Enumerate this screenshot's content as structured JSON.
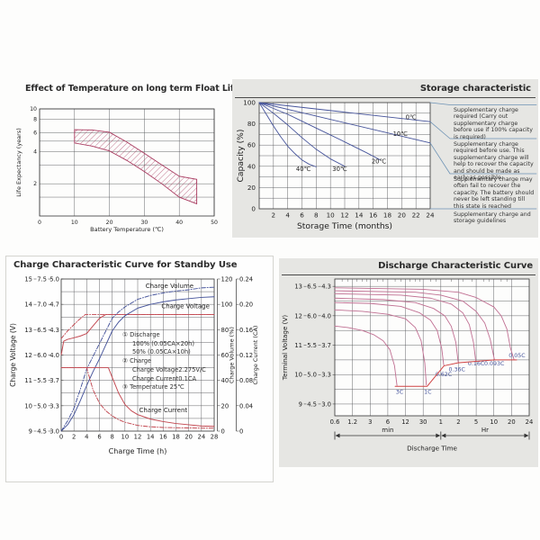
{
  "page": {
    "background": "#fdfdfc"
  },
  "colors": {
    "blue": "#46549b",
    "red": "#c2464f",
    "pink": "#c06f92",
    "cutoff_red": "#d04343",
    "band": "#a93b60",
    "grid": "#55565a",
    "connector": "#6e93b5",
    "panel_gray": "#e6e6e3",
    "title": "#2b2b2b"
  },
  "chart_data": [
    {
      "id": "float_life",
      "type": "area",
      "title": "Effect of Temperature on long term Float Life",
      "xlabel": "Battery Temperature (℃)",
      "ylabel": "Life Expectancy (years)",
      "x_ticks": [
        0,
        10,
        20,
        30,
        40,
        50
      ],
      "y_ticks_labeled": [
        10,
        8,
        6,
        4,
        2
      ],
      "y_gridlines": [
        10,
        8,
        6,
        5,
        4,
        3,
        2,
        1.5
      ],
      "y_scale": "log",
      "xlim": [
        0,
        50
      ],
      "ylim": [
        1,
        10
      ],
      "band_upper": [
        [
          10,
          6.4
        ],
        [
          15,
          6.35
        ],
        [
          20,
          6.05
        ],
        [
          25,
          4.9
        ],
        [
          30,
          3.85
        ],
        [
          35,
          3.0
        ],
        [
          40,
          2.35
        ],
        [
          45,
          2.2
        ]
      ],
      "band_lower": [
        [
          10,
          4.8
        ],
        [
          15,
          4.5
        ],
        [
          20,
          4.05
        ],
        [
          25,
          3.3
        ],
        [
          30,
          2.6
        ],
        [
          35,
          2.0
        ],
        [
          40,
          1.5
        ],
        [
          45,
          1.3
        ]
      ]
    },
    {
      "id": "storage",
      "type": "line",
      "title": "Storage characteristic",
      "xlabel": "Storage Time (months)",
      "ylabel": "Capacity  (%)",
      "x_ticks": [
        2,
        4,
        6,
        8,
        10,
        12,
        14,
        16,
        18,
        20,
        22,
        24
      ],
      "y_ticks": [
        0,
        20,
        40,
        60,
        80,
        100
      ],
      "xlim": [
        0,
        24
      ],
      "ylim": [
        0,
        100
      ],
      "series": [
        {
          "name": "0℃",
          "label_at": [
            21.3,
            84.5
          ],
          "points": [
            [
              0,
              100
            ],
            [
              24,
              82
            ]
          ]
        },
        {
          "name": "10℃",
          "label_at": [
            19.8,
            68.5
          ],
          "points": [
            [
              0,
              100
            ],
            [
              24,
              62
            ]
          ]
        },
        {
          "name": "20℃",
          "label_at": [
            16.8,
            43
          ],
          "points": [
            [
              0,
              100
            ],
            [
              4,
              89
            ],
            [
              8,
              76
            ],
            [
              12,
              63
            ],
            [
              15,
              53
            ],
            [
              17,
              46
            ]
          ]
        },
        {
          "name": "30℃",
          "label_at": [
            11.3,
            35.5
          ],
          "points": [
            [
              0,
              100
            ],
            [
              2,
              90
            ],
            [
              4,
              79
            ],
            [
              6,
              67
            ],
            [
              8,
              56
            ],
            [
              10,
              47
            ],
            [
              12,
              40
            ]
          ]
        },
        {
          "name": "40℃",
          "label_at": [
            6.2,
            35.5
          ],
          "points": [
            [
              0,
              100
            ],
            [
              1,
              89
            ],
            [
              2,
              78
            ],
            [
              3,
              68
            ],
            [
              4,
              59
            ],
            [
              5,
              52
            ],
            [
              6,
              46
            ],
            [
              7,
              42
            ],
            [
              8,
              39.5
            ]
          ]
        }
      ],
      "notes": [
        "Supplementary charge required (Carry out supplementary charge before use if 100% capacity is required)",
        "Supplementary charge required before use. This supplementary charge will help to recover the capacity and should be made  as early as possible.",
        "Supplementary charge may often fail to recover the capacity. The battery should never be left standing till this state is reached",
        "Supplementary charge and storage guidelines"
      ]
    },
    {
      "id": "charge",
      "type": "line",
      "title": "Charge Characteristic Curve for Standby Use",
      "xlabel": "Charge Time  (h)",
      "ylabel_left": "Charge Voltage (V)",
      "ylabel_right1": "Charge Volume (%)",
      "ylabel_right2": "Charge Current (CA)",
      "x_ticks": [
        0,
        2,
        4,
        6,
        8,
        10,
        12,
        14,
        16,
        18,
        20,
        24,
        28
      ],
      "y_ticks_12v": [
        "15",
        "14",
        "13",
        "12",
        "11",
        "10",
        "9"
      ],
      "y_ticks_6v": [
        "7.5",
        "7.0",
        "6.5",
        "6.0",
        "5.5",
        "5.0",
        "4.5"
      ],
      "y_ticks_4v": [
        "5.0",
        "4.7",
        "4.3",
        "4.0",
        "3.7",
        "3.3",
        "3.0"
      ],
      "y_ticks_volume": [
        "120",
        "100",
        "80",
        "60",
        "40",
        "20",
        "0"
      ],
      "y_ticks_current": [
        "0.24",
        "0.20",
        "0.16",
        "0.12",
        "0.08",
        "0.04",
        "0"
      ],
      "legend": [
        "①  Discharge",
        "100%  (0.05CA×20h)",
        "50%  (0.05CA×10h)",
        "②  Charge",
        "Charge Voltage2.275V/C",
        "Charge Current0.1CA",
        "③  Temperature 25℃"
      ],
      "curve_labels": {
        "volume": "Charge Volume",
        "voltage": "Charge Voltage",
        "current": "Charge Current"
      },
      "curve_label_pos": {
        "volume": [
          17,
          113
        ],
        "voltage": [
          19.5,
          13.85
        ],
        "current": [
          16,
          15
        ]
      },
      "series": [
        {
          "name": "charge-voltage-100",
          "axis": "v",
          "style": "solid",
          "color": "red",
          "points": [
            [
              0,
              12.0
            ],
            [
              0.4,
              12.55
            ],
            [
              1,
              12.62
            ],
            [
              2,
              12.68
            ],
            [
              3,
              12.75
            ],
            [
              4,
              12.85
            ],
            [
              5,
              13.15
            ],
            [
              6,
              13.45
            ],
            [
              7,
              13.6
            ],
            [
              28,
              13.6
            ]
          ]
        },
        {
          "name": "charge-voltage-50",
          "axis": "v",
          "style": "dashdot",
          "color": "red",
          "points": [
            [
              0,
              12.65
            ],
            [
              0.5,
              12.8
            ],
            [
              1,
              12.95
            ],
            [
              1.8,
              13.15
            ],
            [
              2.6,
              13.35
            ],
            [
              3.3,
              13.5
            ],
            [
              3.8,
              13.6
            ],
            [
              28,
              13.6
            ]
          ]
        },
        {
          "name": "charge-volume-100",
          "axis": "vol",
          "style": "solid",
          "color": "blue",
          "points": [
            [
              0,
              0
            ],
            [
              1,
              5
            ],
            [
              2,
              13
            ],
            [
              3,
              24
            ],
            [
              4,
              36
            ],
            [
              5,
              47
            ],
            [
              6,
              57
            ],
            [
              7,
              68
            ],
            [
              8,
              79
            ],
            [
              9,
              86
            ],
            [
              10,
              91
            ],
            [
              12,
              97
            ],
            [
              14,
              100
            ],
            [
              16,
              102
            ],
            [
              18,
              103.5
            ],
            [
              20,
              104.5
            ],
            [
              24,
              105.5
            ],
            [
              28,
              106
            ]
          ]
        },
        {
          "name": "charge-volume-50",
          "axis": "vol",
          "style": "dashdot",
          "color": "blue",
          "points": [
            [
              0,
              0
            ],
            [
              1,
              8
            ],
            [
              2,
              18
            ],
            [
              3,
              33
            ],
            [
              4,
              49
            ],
            [
              5,
              59
            ],
            [
              6,
              69
            ],
            [
              7,
              79
            ],
            [
              8,
              89
            ],
            [
              9,
              94
            ],
            [
              10,
              98
            ],
            [
              12,
              104
            ],
            [
              14,
              107
            ],
            [
              16,
              109
            ],
            [
              18,
              110.5
            ],
            [
              20,
              111.5
            ],
            [
              24,
              113
            ],
            [
              28,
              113.5
            ]
          ]
        },
        {
          "name": "charge-current-100",
          "axis": "ca",
          "style": "solid",
          "color": "red",
          "points": [
            [
              0,
              0.1
            ],
            [
              7.4,
              0.1
            ],
            [
              8,
              0.085
            ],
            [
              9,
              0.06
            ],
            [
              10,
              0.042
            ],
            [
              11,
              0.032
            ],
            [
              12,
              0.026
            ],
            [
              14,
              0.019
            ],
            [
              16,
              0.015
            ],
            [
              18,
              0.012
            ],
            [
              20,
              0.01
            ],
            [
              24,
              0.008
            ],
            [
              28,
              0.0075
            ]
          ]
        },
        {
          "name": "charge-current-50",
          "axis": "ca",
          "style": "dashdot",
          "color": "red",
          "points": [
            [
              0,
              0.1
            ],
            [
              4,
              0.1
            ],
            [
              4.5,
              0.082
            ],
            [
              5,
              0.065
            ],
            [
              6,
              0.044
            ],
            [
              7,
              0.032
            ],
            [
              8,
              0.024
            ],
            [
              9,
              0.018
            ],
            [
              10,
              0.014
            ],
            [
              12,
              0.009
            ],
            [
              14,
              0.0068
            ],
            [
              16,
              0.0057
            ],
            [
              20,
              0.005
            ],
            [
              24,
              0.0047
            ],
            [
              28,
              0.0045
            ]
          ]
        }
      ]
    },
    {
      "id": "discharge",
      "type": "line",
      "title": "Discharge Characteristic Curve",
      "xlabel": "Discharge Time",
      "ylabel": "Terminal Voltage (V)",
      "x_ticks_min": [
        "0.6",
        "1.2",
        "3",
        "6",
        "12",
        "30"
      ],
      "x_ticks_hr": [
        "1",
        "2",
        "5",
        "10",
        "20",
        "24"
      ],
      "x_unit_min": "min",
      "x_unit_hr": "Hr",
      "y_ticks_12v": [
        "13",
        "12",
        "11",
        "10",
        "9"
      ],
      "y_ticks_6v": [
        "6.5",
        "6.0",
        "5.5",
        "5.0",
        "4.5"
      ],
      "y_ticks_4v": [
        "4.3",
        "4.0",
        "3.7",
        "3.3",
        "3.0"
      ],
      "series": [
        {
          "name": "3C",
          "label_at": [
            9.5,
            9.35
          ],
          "points": [
            [
              0.6,
              11.65
            ],
            [
              1,
              11.6
            ],
            [
              2,
              11.5
            ],
            [
              3.5,
              11.35
            ],
            [
              5,
              11.15
            ],
            [
              6.5,
              10.85
            ],
            [
              7.8,
              10.3
            ],
            [
              8.6,
              9.63
            ]
          ]
        },
        {
          "name": "1C",
          "label_at": [
            36,
            9.35
          ],
          "points": [
            [
              0.6,
              12.2
            ],
            [
              2,
              12.15
            ],
            [
              6,
              12.05
            ],
            [
              12,
              11.9
            ],
            [
              20,
              11.6
            ],
            [
              27,
              11.15
            ],
            [
              32,
              10.4
            ],
            [
              34,
              9.65
            ]
          ]
        },
        {
          "name": "0.62C",
          "label_at": [
            67,
            9.95
          ],
          "points": [
            [
              0.6,
              12.45
            ],
            [
              3,
              12.42
            ],
            [
              10,
              12.32
            ],
            [
              25,
              12.1
            ],
            [
              40,
              11.85
            ],
            [
              52,
              11.5
            ],
            [
              62,
              10.9
            ],
            [
              67,
              10.35
            ],
            [
              68,
              10.31
            ]
          ]
        },
        {
          "name": "0.36C",
          "label_at": [
            113,
            10.12
          ],
          "points": [
            [
              0.6,
              12.6
            ],
            [
              5,
              12.55
            ],
            [
              20,
              12.45
            ],
            [
              45,
              12.25
            ],
            [
              70,
              12.0
            ],
            [
              90,
              11.65
            ],
            [
              108,
              11.1
            ],
            [
              118,
              10.45
            ],
            [
              120,
              10.42
            ]
          ]
        },
        {
          "name": "0.16C",
          "label_at": [
            300,
            10.31
          ],
          "points": [
            [
              0.6,
              12.75
            ],
            [
              10,
              12.7
            ],
            [
              40,
              12.6
            ],
            [
              90,
              12.4
            ],
            [
              150,
              12.1
            ],
            [
              210,
              11.7
            ],
            [
              260,
              11.1
            ],
            [
              290,
              10.52
            ],
            [
              295,
              10.46
            ]
          ]
        },
        {
          "name": "0.093C",
          "label_at": [
            610,
            10.31
          ],
          "points": [
            [
              0.6,
              12.85
            ],
            [
              20,
              12.8
            ],
            [
              60,
              12.7
            ],
            [
              150,
              12.5
            ],
            [
              300,
              12.15
            ],
            [
              420,
              11.75
            ],
            [
              520,
              11.2
            ],
            [
              600,
              10.6
            ],
            [
              615,
              10.5
            ]
          ]
        },
        {
          "name": "0.05C",
          "label_at": [
            1270,
            10.59
          ],
          "points": [
            [
              0.6,
              12.95
            ],
            [
              30,
              12.9
            ],
            [
              120,
              12.8
            ],
            [
              300,
              12.62
            ],
            [
              600,
              12.3
            ],
            [
              800,
              12.0
            ],
            [
              1000,
              11.55
            ],
            [
              1150,
              10.9
            ],
            [
              1230,
              10.52
            ]
          ]
        }
      ],
      "cutoff_line": [
        [
          8,
          9.6
        ],
        [
          35,
          9.6
        ],
        [
          68,
          10.3
        ],
        [
          118,
          10.4
        ],
        [
          295,
          10.45
        ],
        [
          615,
          10.5
        ],
        [
          1265,
          10.5
        ]
      ]
    }
  ]
}
